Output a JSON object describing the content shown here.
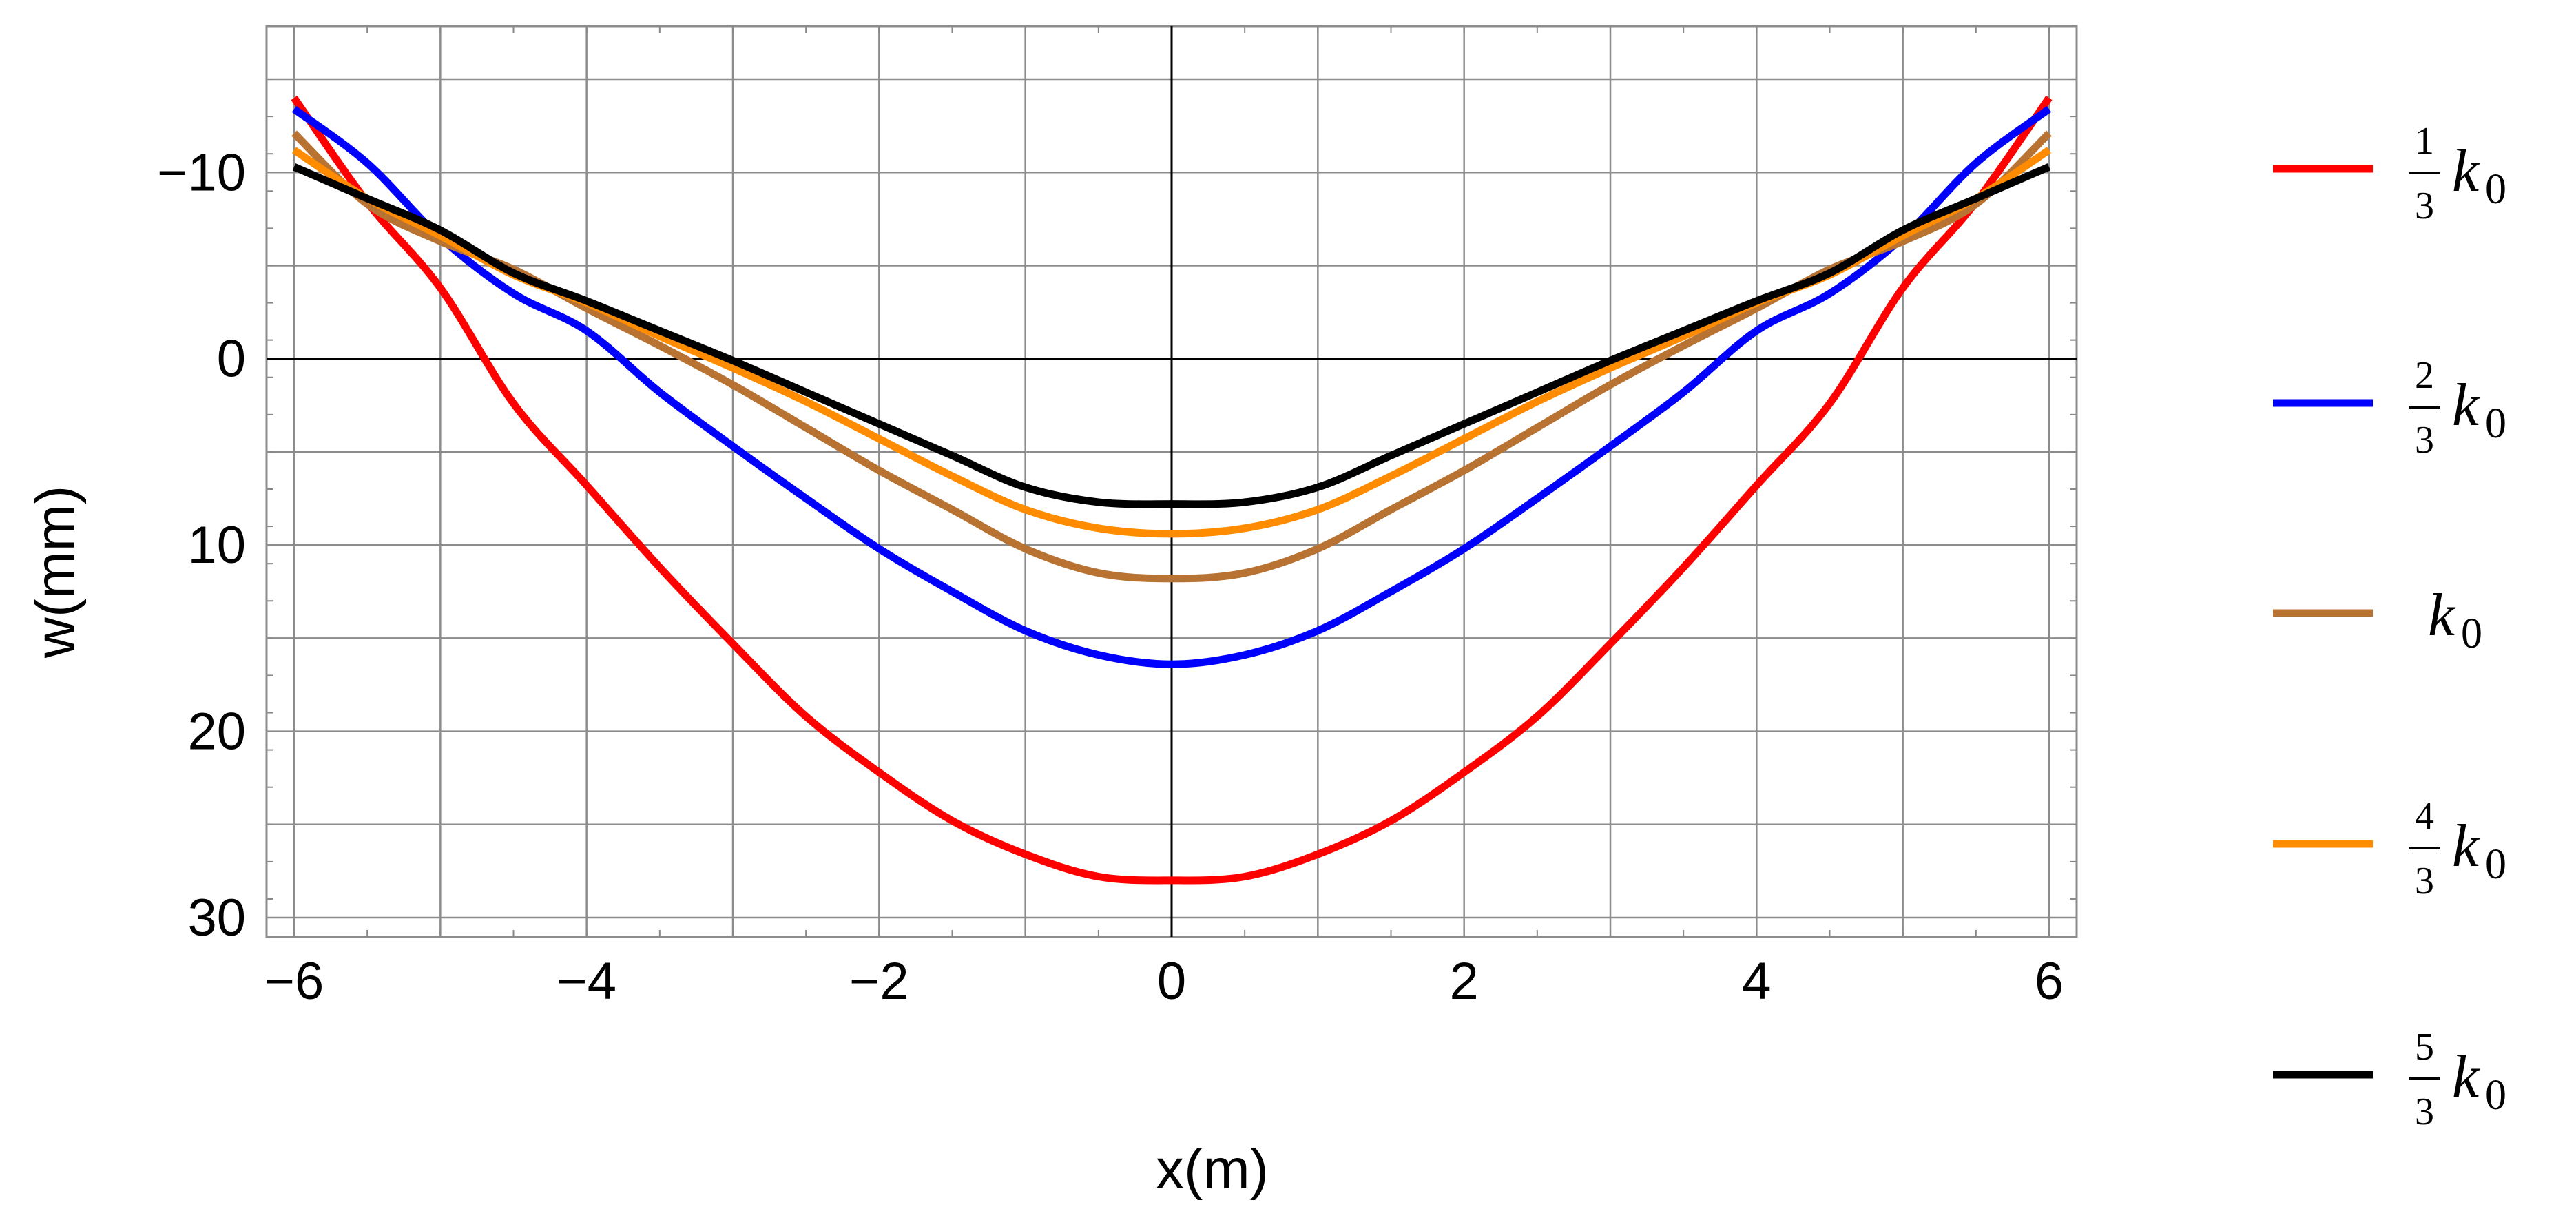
{
  "chart_data": {
    "type": "line",
    "title": "",
    "xlabel": "x(m)",
    "ylabel": "w(mm)",
    "xlim": [
      -6,
      6
    ],
    "ylim": [
      30,
      -16
    ],
    "y_inverted": true,
    "grid": true,
    "legend_position": "right",
    "x_ticks": [
      -6,
      -4,
      -2,
      0,
      2,
      4,
      6
    ],
    "y_ticks": [
      -10,
      0,
      10,
      20,
      30
    ],
    "x_tick_labels": [
      "−6",
      "−4",
      "−2",
      "0",
      "2",
      "4",
      "6"
    ],
    "y_tick_labels": [
      "−10",
      "0",
      "10",
      "20",
      "30"
    ],
    "x": [
      -6,
      -5.5,
      -5,
      -4.5,
      -4,
      -3.5,
      -3,
      -2.5,
      -2,
      -1.5,
      -1,
      -0.5,
      0,
      0.5,
      1,
      1.5,
      2,
      2.5,
      3,
      3.5,
      4,
      4.5,
      5,
      5.5,
      6
    ],
    "series": [
      {
        "name": "1/3 k0",
        "frac_num": "1",
        "frac_den": "3",
        "symbol": "k",
        "subscript": "0",
        "color": "#ff0000",
        "values": [
          -14,
          -8.4,
          -3.8,
          2.4,
          6.8,
          11.2,
          15.3,
          19.2,
          22.2,
          24.8,
          26.6,
          27.8,
          28.0,
          27.8,
          26.6,
          24.8,
          22.2,
          19.2,
          15.3,
          11.2,
          6.8,
          2.4,
          -3.8,
          -8.4,
          -14
        ]
      },
      {
        "name": "2/3 k0",
        "frac_num": "2",
        "frac_den": "3",
        "symbol": "k",
        "subscript": "0",
        "color": "#0000ff",
        "values": [
          -13.4,
          -10.5,
          -6.5,
          -3.5,
          -1.5,
          1.8,
          4.7,
          7.5,
          10.2,
          12.5,
          14.6,
          15.9,
          16.4,
          15.9,
          14.6,
          12.5,
          10.2,
          7.5,
          4.7,
          1.8,
          -1.5,
          -3.5,
          -6.5,
          -10.5,
          -13.4
        ]
      },
      {
        "name": "k0",
        "frac_num": "",
        "frac_den": "",
        "symbol": "k",
        "subscript": "0",
        "color": "#b87333",
        "values": [
          -12.1,
          -8.3,
          -6.3,
          -4.8,
          -2.7,
          -0.7,
          1.4,
          3.7,
          6.0,
          8.1,
          10.2,
          11.5,
          11.8,
          11.5,
          10.2,
          8.1,
          6.0,
          3.7,
          1.4,
          -0.7,
          -2.7,
          -4.8,
          -6.3,
          -8.3,
          -12.1
        ]
      },
      {
        "name": "4/3 k0",
        "frac_num": "4",
        "frac_den": "3",
        "symbol": "k",
        "subscript": "0",
        "color": "#ff8c00",
        "values": [
          -11.2,
          -8.6,
          -6.6,
          -4.5,
          -3.0,
          -1.2,
          0.5,
          2.3,
          4.3,
          6.3,
          8.1,
          9.1,
          9.4,
          9.1,
          8.1,
          6.3,
          4.3,
          2.3,
          0.5,
          -1.2,
          -3.0,
          -4.5,
          -6.6,
          -8.6,
          -11.2
        ]
      },
      {
        "name": "5/3 k0",
        "frac_num": "5",
        "frac_den": "3",
        "symbol": "k",
        "subscript": "0",
        "color": "#000000",
        "values": [
          -10.3,
          -8.6,
          -6.9,
          -4.6,
          -3.1,
          -1.5,
          0.1,
          1.8,
          3.5,
          5.2,
          6.9,
          7.7,
          7.8,
          7.7,
          6.9,
          5.2,
          3.5,
          1.8,
          0.1,
          -1.5,
          -3.1,
          -4.6,
          -6.9,
          -8.6,
          -10.3
        ]
      }
    ]
  }
}
